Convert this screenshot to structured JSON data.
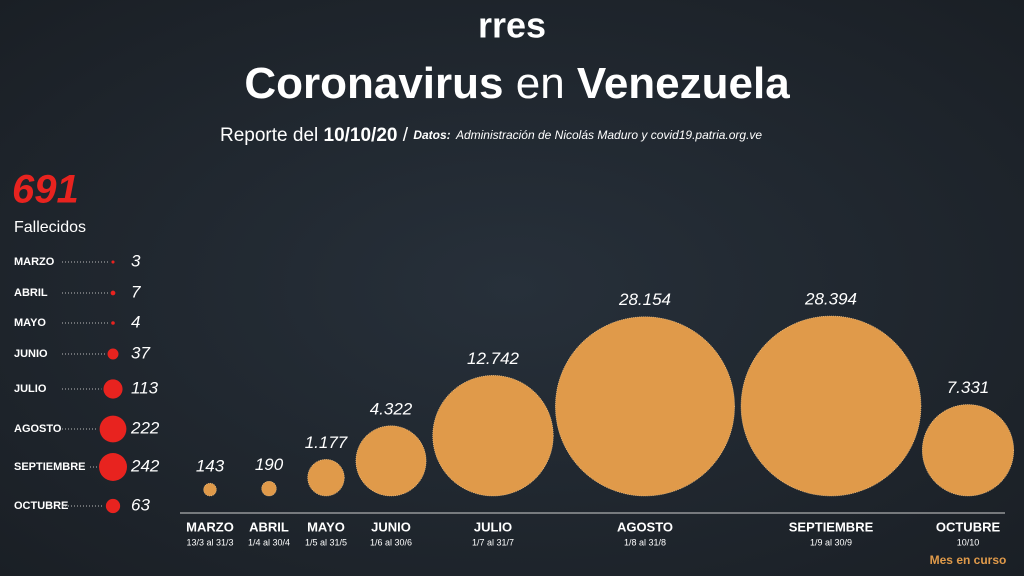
{
  "header": {
    "logo": "rres",
    "title_parts": [
      "Coronavirus",
      "en",
      "Venezuela"
    ],
    "report_label": "Reporte del",
    "report_date": "10/10/20",
    "separator": "/",
    "source_label": "Datos:",
    "source": "Administración de Nicolás Maduro y covid19.patria.org.ve"
  },
  "chart_data": [
    {
      "type": "bubble",
      "categories": [
        "MARZO",
        "ABRIL",
        "MAYO",
        "JUNIO",
        "JULIO",
        "AGOSTO",
        "SEPTIEMBRE",
        "OCTUBRE"
      ],
      "periods": [
        "13/3 al 31/3",
        "1/4 al 30/4",
        "1/5 al 31/5",
        "1/6 al 30/6",
        "1/7 al 31/7",
        "1/8 al 31/8",
        "1/9 al 30/9",
        "10/10"
      ],
      "values": [
        143,
        190,
        1177,
        4322,
        12742,
        28154,
        28394,
        7331
      ],
      "value_labels": [
        "143",
        "190",
        "1.177",
        "4.322",
        "12.742",
        "28.154",
        "28.394",
        "7.331"
      ],
      "color": "#e09a4a",
      "note": "Mes en curso"
    },
    {
      "type": "bubble-list",
      "total": 691,
      "total_label": "Fallecidos",
      "categories": [
        "MARZO",
        "ABRIL",
        "MAYO",
        "JUNIO",
        "JULIO",
        "AGOSTO",
        "SEPTIEMBRE",
        "OCTUBRE"
      ],
      "values": [
        3,
        7,
        4,
        37,
        113,
        222,
        242,
        63
      ],
      "color": "#e8231f"
    }
  ]
}
